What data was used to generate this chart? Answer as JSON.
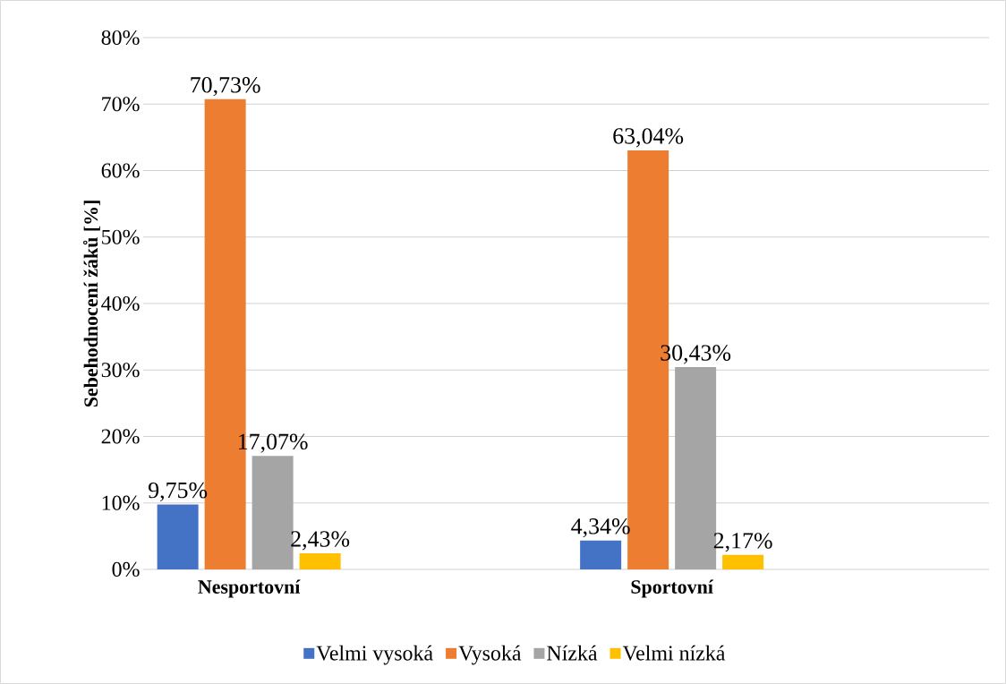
{
  "chart_data": {
    "type": "bar",
    "ylabel": "Sebehodnocení žáků [%]",
    "categories": [
      "Nesportovní",
      "Sportovní"
    ],
    "series": [
      {
        "name": "Velmi vysoká",
        "color": "#4472c4",
        "values": [
          9.75,
          4.34
        ],
        "value_labels": [
          "9,75%",
          "4,34%"
        ]
      },
      {
        "name": "Vysoká",
        "color": "#ed7d31",
        "values": [
          70.73,
          63.04
        ],
        "value_labels": [
          "70,73%",
          "63,04%"
        ]
      },
      {
        "name": "Nízká",
        "color": "#a5a5a5",
        "values": [
          17.07,
          30.43
        ],
        "value_labels": [
          "17,07%",
          "30,43%"
        ]
      },
      {
        "name": "Velmi nízká",
        "color": "#ffc000",
        "values": [
          2.43,
          2.17
        ],
        "value_labels": [
          "2,43%",
          "2,17%"
        ]
      }
    ],
    "ylim": [
      0,
      80
    ],
    "yticks": [
      {
        "value": 0,
        "label": "0%"
      },
      {
        "value": 10,
        "label": "10%"
      },
      {
        "value": 20,
        "label": "20%"
      },
      {
        "value": 30,
        "label": "30%"
      },
      {
        "value": 40,
        "label": "40%"
      },
      {
        "value": 50,
        "label": "50%"
      },
      {
        "value": 60,
        "label": "60%"
      },
      {
        "value": 70,
        "label": "70%"
      },
      {
        "value": 80,
        "label": "80%"
      }
    ],
    "grid": "y",
    "legend": "bottom"
  }
}
